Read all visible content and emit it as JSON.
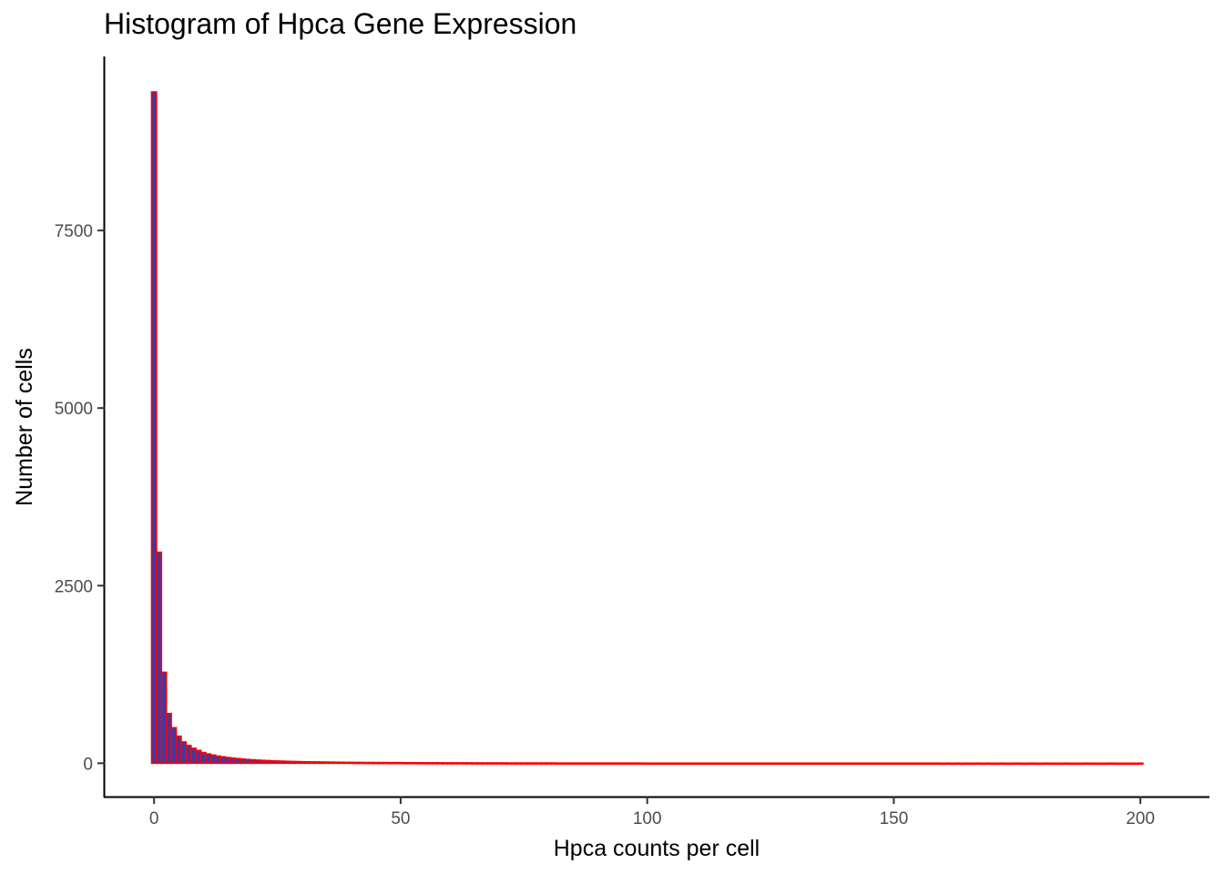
{
  "chart_data": {
    "type": "bar",
    "subtype": "histogram",
    "title": "Histogram of Hpca Gene Expression",
    "xlabel": "Hpca counts per cell",
    "ylabel": "Number of cells",
    "x_ticks": [
      0,
      50,
      100,
      150,
      200
    ],
    "y_ticks": [
      0,
      2500,
      5000,
      7500
    ],
    "xlim": [
      -10,
      214
    ],
    "ylim": [
      -470,
      9950
    ],
    "bin_width": 1,
    "bin_start": -0.5,
    "values": [
      9450,
      2970,
      1280,
      700,
      500,
      380,
      300,
      250,
      210,
      180,
      150,
      130,
      115,
      100,
      90,
      80,
      72,
      65,
      58,
      53,
      48,
      44,
      40,
      37,
      34,
      31,
      29,
      27,
      25,
      23,
      21,
      20,
      19,
      18,
      17,
      16,
      15,
      14,
      13,
      12,
      12,
      11,
      11,
      10,
      10,
      9,
      9,
      9,
      8,
      8,
      8,
      7,
      7,
      7,
      7,
      6,
      6,
      6,
      6,
      5,
      5,
      5,
      5,
      5,
      5,
      4,
      4,
      4,
      4,
      4,
      4,
      4,
      3,
      3,
      3,
      3,
      3,
      3,
      3,
      3,
      3,
      3,
      2,
      2,
      2,
      2,
      2,
      2,
      2,
      2,
      2,
      2,
      2,
      2,
      2,
      2,
      2,
      2,
      2,
      2,
      1,
      1,
      1,
      1,
      1,
      1,
      1,
      1,
      1,
      1,
      1,
      1,
      1,
      1,
      1,
      1,
      1,
      1,
      1,
      1,
      1,
      1,
      1,
      1,
      1,
      1,
      1,
      1,
      1,
      1,
      1,
      1,
      1,
      1,
      1,
      1,
      1,
      1,
      1,
      1,
      1,
      1,
      1,
      1,
      1,
      1,
      1,
      1,
      1,
      1,
      1,
      1,
      1,
      1,
      1,
      1,
      1,
      1,
      1,
      1,
      0,
      1,
      0,
      1,
      0,
      1,
      0,
      1,
      0,
      1,
      0,
      0,
      1,
      0,
      0,
      1,
      0,
      0,
      1,
      0,
      0,
      1,
      0,
      0,
      0,
      1,
      0,
      0,
      0,
      1,
      0,
      0,
      0,
      0,
      1,
      0,
      0,
      0,
      0,
      0,
      1
    ],
    "bar_fill": "#3a3aa8",
    "bar_outline": "#ff0000",
    "grid": false
  }
}
